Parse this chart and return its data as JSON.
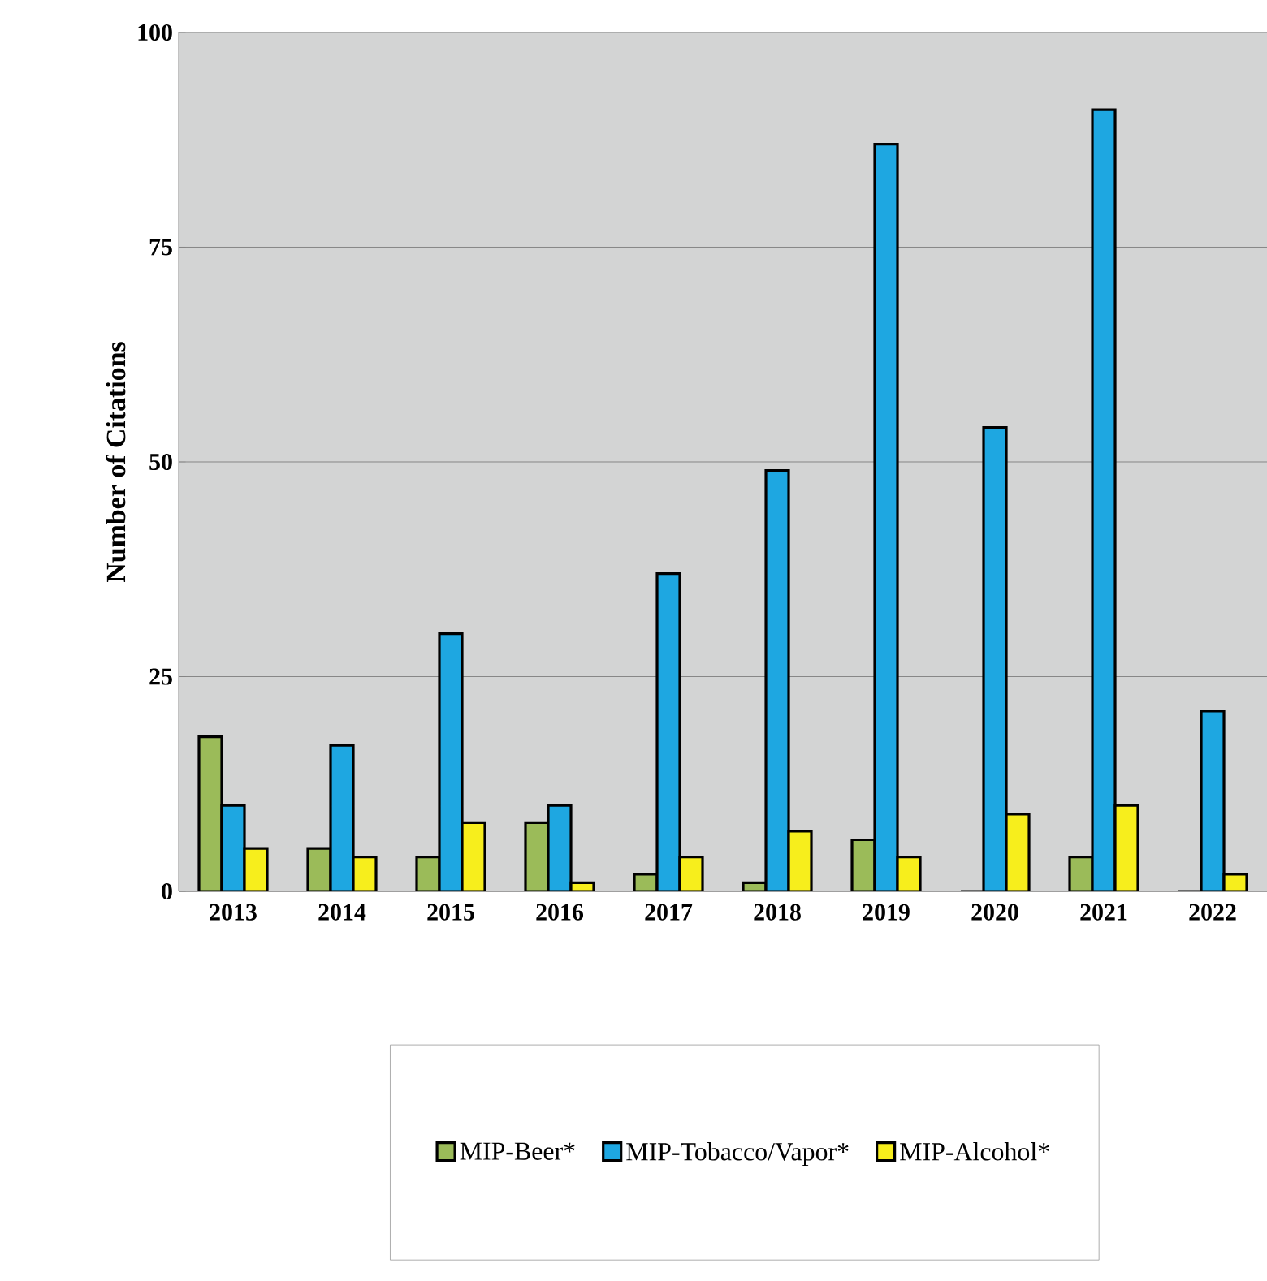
{
  "chart_data": {
    "type": "bar",
    "ylabel": "Number of Citations",
    "categories": [
      "2013",
      "2014",
      "2015",
      "2016",
      "2017",
      "2018",
      "2019",
      "2020",
      "2021",
      "2022"
    ],
    "series": [
      {
        "name": "MIP-Beer*",
        "color": "#9bbb59",
        "values": [
          18,
          5,
          4,
          8,
          2,
          1,
          6,
          0,
          4,
          0
        ]
      },
      {
        "name": "MIP-Tobacco/Vapor*",
        "color": "#1ea7e1",
        "values": [
          10,
          17,
          30,
          10,
          37,
          49,
          87,
          54,
          91,
          21
        ]
      },
      {
        "name": "MIP-Alcohol*",
        "color": "#f7ee1c",
        "values": [
          5,
          4,
          8,
          1,
          4,
          7,
          4,
          9,
          10,
          2
        ]
      }
    ],
    "ylim": [
      0,
      100
    ],
    "yticks": [
      0,
      25,
      50,
      75,
      100
    ],
    "grid": "y",
    "legend": "bottom"
  }
}
